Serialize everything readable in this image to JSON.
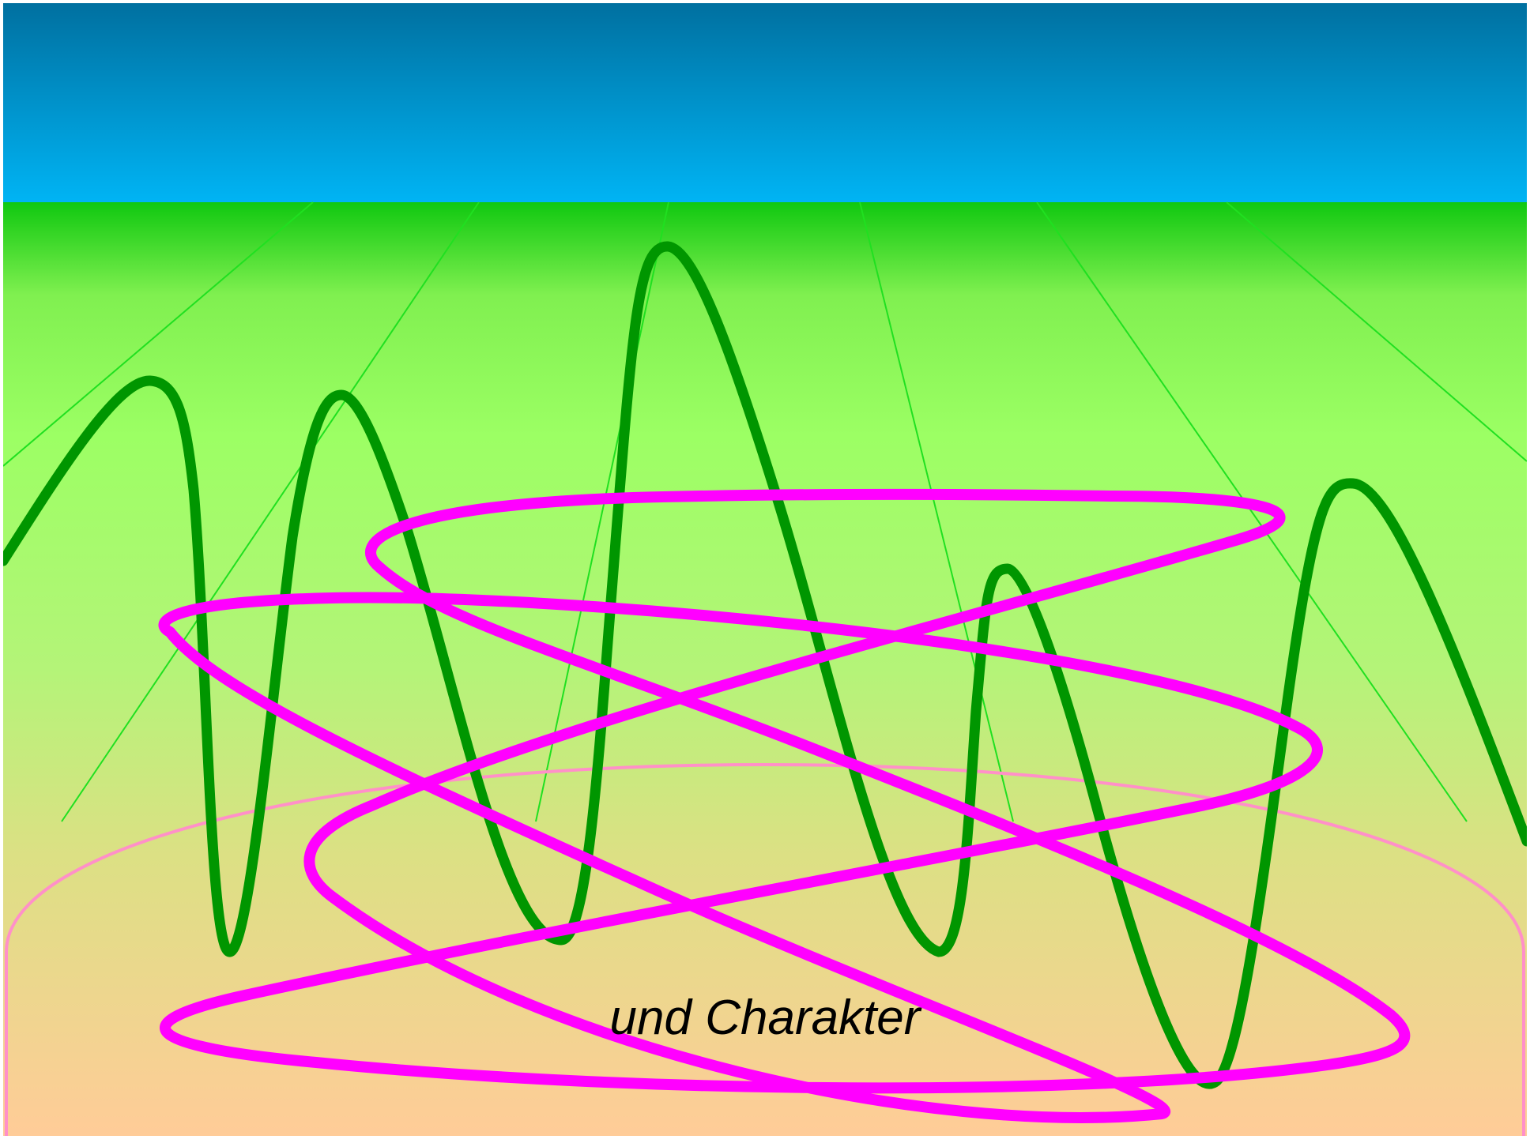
{
  "scene": {
    "caption": "und Charakter"
  },
  "colors": {
    "sky_top": "#0070a0",
    "sky_bottom": "#00b4f4",
    "ground_top": "#10c810",
    "ground_light": "#9cff64",
    "ground_bottom": "#ffcc98",
    "grid_line": "#20e020",
    "wave": "#009600",
    "loop": "#ff00ff",
    "arch": "#ff90c8"
  }
}
